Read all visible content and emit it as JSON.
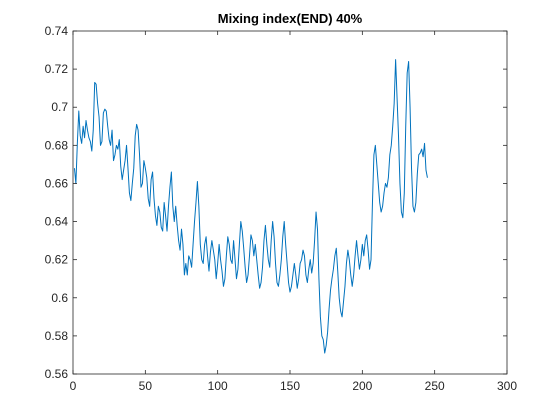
{
  "chart_data": {
    "type": "line",
    "title": "Mixing index(END) 40%",
    "xlabel": "",
    "ylabel": "",
    "xlim": [
      0,
      300
    ],
    "ylim": [
      0.56,
      0.74
    ],
    "x_ticks": [
      0,
      50,
      100,
      150,
      200,
      250,
      300
    ],
    "x_tick_labels": [
      "0",
      "50",
      "100",
      "150",
      "200",
      "250",
      "300"
    ],
    "y_ticks": [
      0.56,
      0.58,
      0.6,
      0.62,
      0.64,
      0.66,
      0.68,
      0.7,
      0.72,
      0.74
    ],
    "y_tick_labels": [
      "0.56",
      "0.58",
      "0.6",
      "0.62",
      "0.64",
      "0.66",
      "0.68",
      "0.7",
      "0.72",
      "0.74"
    ],
    "grid": false,
    "line_color": "#0072BD",
    "series": [
      {
        "x_start": 1,
        "x_step": 1,
        "values": [
          0.668,
          0.66,
          0.681,
          0.698,
          0.685,
          0.681,
          0.69,
          0.684,
          0.693,
          0.688,
          0.684,
          0.682,
          0.677,
          0.688,
          0.713,
          0.712,
          0.702,
          0.695,
          0.68,
          0.682,
          0.697,
          0.699,
          0.698,
          0.69,
          0.683,
          0.68,
          0.688,
          0.672,
          0.675,
          0.68,
          0.678,
          0.683,
          0.669,
          0.662,
          0.667,
          0.672,
          0.68,
          0.668,
          0.655,
          0.651,
          0.66,
          0.668,
          0.685,
          0.691,
          0.688,
          0.675,
          0.658,
          0.66,
          0.672,
          0.668,
          0.663,
          0.652,
          0.648,
          0.662,
          0.666,
          0.652,
          0.643,
          0.638,
          0.648,
          0.645,
          0.637,
          0.635,
          0.65,
          0.643,
          0.635,
          0.648,
          0.658,
          0.666,
          0.648,
          0.64,
          0.648,
          0.638,
          0.63,
          0.625,
          0.636,
          0.628,
          0.612,
          0.618,
          0.612,
          0.622,
          0.62,
          0.616,
          0.628,
          0.64,
          0.65,
          0.661,
          0.648,
          0.628,
          0.62,
          0.618,
          0.628,
          0.632,
          0.622,
          0.614,
          0.624,
          0.63,
          0.625,
          0.62,
          0.61,
          0.618,
          0.628,
          0.62,
          0.614,
          0.606,
          0.61,
          0.622,
          0.632,
          0.628,
          0.62,
          0.618,
          0.63,
          0.62,
          0.61,
          0.615,
          0.628,
          0.64,
          0.635,
          0.626,
          0.616,
          0.608,
          0.612,
          0.622,
          0.633,
          0.63,
          0.622,
          0.628,
          0.62,
          0.612,
          0.605,
          0.608,
          0.616,
          0.63,
          0.638,
          0.628,
          0.62,
          0.616,
          0.63,
          0.64,
          0.632,
          0.618,
          0.608,
          0.606,
          0.612,
          0.62,
          0.632,
          0.64,
          0.628,
          0.618,
          0.608,
          0.603,
          0.606,
          0.612,
          0.618,
          0.612,
          0.605,
          0.61,
          0.618,
          0.62,
          0.625,
          0.622,
          0.612,
          0.608,
          0.615,
          0.62,
          0.613,
          0.618,
          0.63,
          0.645,
          0.636,
          0.61,
          0.59,
          0.58,
          0.578,
          0.571,
          0.575,
          0.582,
          0.594,
          0.604,
          0.61,
          0.615,
          0.622,
          0.626,
          0.614,
          0.6,
          0.593,
          0.59,
          0.598,
          0.606,
          0.618,
          0.625,
          0.62,
          0.612,
          0.606,
          0.612,
          0.622,
          0.63,
          0.622,
          0.615,
          0.62,
          0.628,
          0.622,
          0.63,
          0.633,
          0.625,
          0.615,
          0.62,
          0.65,
          0.675,
          0.68,
          0.67,
          0.66,
          0.65,
          0.645,
          0.648,
          0.655,
          0.66,
          0.658,
          0.663,
          0.675,
          0.68,
          0.69,
          0.702,
          0.725,
          0.705,
          0.685,
          0.66,
          0.645,
          0.642,
          0.655,
          0.69,
          0.718,
          0.724,
          0.7,
          0.668,
          0.648,
          0.645,
          0.65,
          0.665,
          0.675,
          0.676,
          0.678,
          0.674,
          0.681,
          0.667,
          0.663
        ]
      }
    ]
  }
}
